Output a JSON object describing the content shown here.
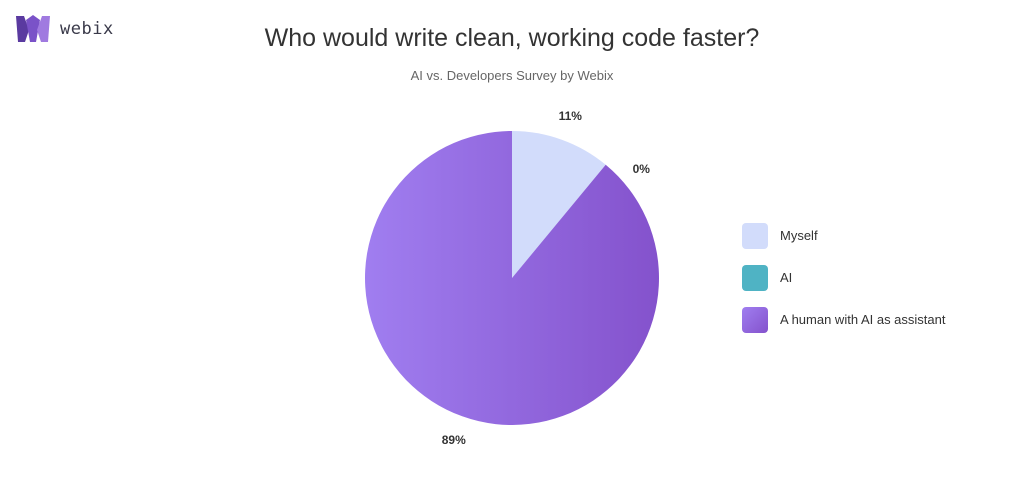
{
  "brand": {
    "name": "webix"
  },
  "chart_data": {
    "type": "pie",
    "title": "Who would write clean, working code faster?",
    "subtitle": "AI vs. Developers Survey by Webix",
    "slices": [
      {
        "label": "Myself",
        "value": 11,
        "display": "11%",
        "color": "#d2dcfb"
      },
      {
        "label": "AI",
        "value": 0,
        "display": "0%",
        "color": "#4fb3c4"
      },
      {
        "label": "A human with AI as assistant",
        "value": 89,
        "display": "89%",
        "color": "#8b63d8"
      }
    ],
    "legend_position": "right"
  }
}
